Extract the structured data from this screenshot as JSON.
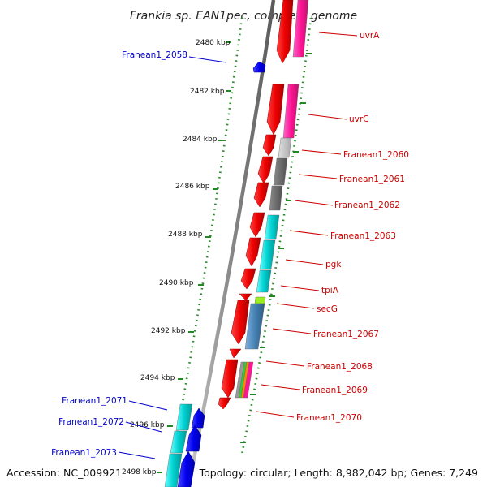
{
  "title": "Frankia sp. EAN1pec, complete genome",
  "footer": {
    "accession": "Accession: NC_009921",
    "info": "Topology: circular; Length: 8,982,042 bp; Genes: 7,249"
  },
  "ticks": [
    "2480 kbp",
    "2482 kbp",
    "2484 kbp",
    "2486 kbp",
    "2488 kbp",
    "2490 kbp",
    "2492 kbp",
    "2494 kbp",
    "2496 kbp",
    "2498 kbp"
  ],
  "genes_right": [
    {
      "label": "uvrA",
      "color": "#cc0000"
    },
    {
      "label": "uvrC",
      "color": "#cc0000"
    },
    {
      "label": "Franean1_2060",
      "color": "#cc0000"
    },
    {
      "label": "Franean1_2061",
      "color": "#cc0000"
    },
    {
      "label": "Franean1_2062",
      "color": "#cc0000"
    },
    {
      "label": "Franean1_2063",
      "color": "#cc0000"
    },
    {
      "label": "pgk",
      "color": "#cc0000"
    },
    {
      "label": "tpiA",
      "color": "#cc0000"
    },
    {
      "label": "secG",
      "color": "#cc0000"
    },
    {
      "label": "Franean1_2067",
      "color": "#cc0000"
    },
    {
      "label": "Franean1_2068",
      "color": "#cc0000"
    },
    {
      "label": "Franean1_2069",
      "color": "#cc0000"
    },
    {
      "label": "Franean1_2070",
      "color": "#cc0000"
    }
  ],
  "genes_left": [
    {
      "label": "Franean1_2058",
      "color": "#0000cc"
    },
    {
      "label": "Franean1_2071",
      "color": "#0000cc"
    },
    {
      "label": "Franean1_2072",
      "color": "#0000cc"
    },
    {
      "label": "Franean1_2073",
      "color": "#0000cc"
    }
  ],
  "colors": {
    "forward_cds": "#ee0000",
    "reverse_cds": "#0000ee",
    "backbone": "#888888",
    "tick_marks": "#228822"
  }
}
